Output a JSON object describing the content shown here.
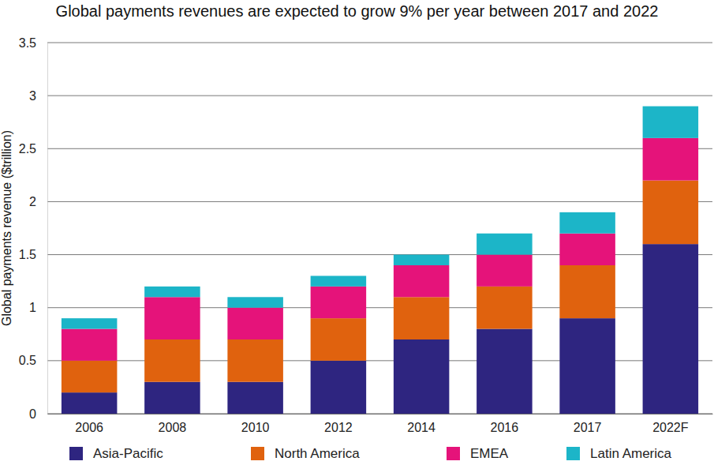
{
  "chart_data": {
    "type": "bar",
    "stacked": true,
    "title": "Global payments revenues are expected to grow 9% per year between 2017 and 2022",
    "y_label": "Global payments revenue ($trillion)",
    "categories": [
      "2006",
      "2008",
      "2010",
      "2012",
      "2014",
      "2016",
      "2017",
      "2022F"
    ],
    "series": [
      {
        "name": "Asia-Pacific",
        "color": "#2e2580",
        "values": [
          0.2,
          0.3,
          0.3,
          0.5,
          0.7,
          0.8,
          0.9,
          1.6
        ]
      },
      {
        "name": "North America",
        "color": "#e0620e",
        "values": [
          0.3,
          0.4,
          0.4,
          0.4,
          0.4,
          0.4,
          0.5,
          0.6
        ]
      },
      {
        "name": "EMEA",
        "color": "#e5137a",
        "values": [
          0.3,
          0.4,
          0.3,
          0.3,
          0.3,
          0.3,
          0.3,
          0.4
        ]
      },
      {
        "name": "Latin America",
        "color": "#1cb5c8",
        "values": [
          0.1,
          0.1,
          0.1,
          0.1,
          0.1,
          0.2,
          0.2,
          0.3
        ]
      }
    ],
    "ylim": [
      0,
      3.5
    ],
    "yticks": [
      0,
      0.5,
      1,
      1.5,
      2,
      2.5,
      3,
      3.5
    ],
    "grid": true,
    "legend": "bottom"
  }
}
